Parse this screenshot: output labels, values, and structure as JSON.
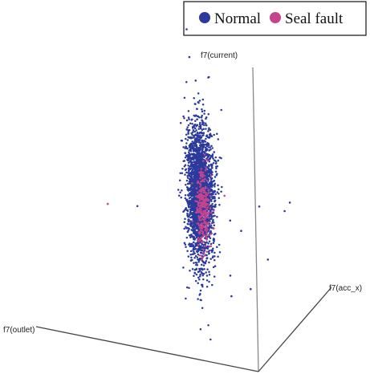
{
  "chart_data": {
    "type": "scatter",
    "projection": "3d",
    "title": "",
    "legend": {
      "placement": "top-right",
      "entries": [
        {
          "name": "Normal",
          "color": "#2b3a9c"
        },
        {
          "name": "Seal fault",
          "color": "#c4458e"
        }
      ]
    },
    "axes": {
      "vertical": "f7(current)",
      "left": "f7(outlet)",
      "right": "f7(acc_x)"
    },
    "series": [
      {
        "name": "Normal",
        "color": "#2b3a9c",
        "cluster": {
          "center": [
            0.35,
            0.3,
            0.45
          ],
          "spread": [
            0.06,
            0.05,
            0.22
          ],
          "count": 2600
        },
        "outliers": [
          [
            0.05,
            0.2,
            0.48
          ],
          [
            0.1,
            0.1,
            0.42
          ],
          [
            0.2,
            0.05,
            0.55
          ],
          [
            0.02,
            0.45,
            0.4
          ],
          [
            0.28,
            0.06,
            0.6
          ],
          [
            0.22,
            0.3,
            0.2
          ],
          [
            0.3,
            0.55,
            0.3
          ],
          [
            0.15,
            0.6,
            0.18
          ],
          [
            0.38,
            0.25,
            1.0
          ],
          [
            0.36,
            0.22,
            0.92
          ],
          [
            0.34,
            0.24,
            0.84
          ],
          [
            0.33,
            0.26,
            0.77
          ],
          [
            0.35,
            0.28,
            0.7
          ],
          [
            0.3,
            0.35,
            0.58
          ],
          [
            0.25,
            0.4,
            0.1
          ],
          [
            0.18,
            0.45,
            0.12
          ],
          [
            0.6,
            0.2,
            0.4
          ],
          [
            0.45,
            0.5,
            0.22
          ],
          [
            0.4,
            0.62,
            0.28
          ],
          [
            0.08,
            0.7,
            0.35
          ]
        ]
      },
      {
        "name": "Seal fault",
        "color": "#c4458e",
        "cluster": {
          "center": [
            0.34,
            0.31,
            0.4
          ],
          "spread": [
            0.03,
            0.025,
            0.12
          ],
          "count": 280
        },
        "outliers": [
          [
            0.7,
            0.1,
            0.42
          ],
          [
            0.26,
            0.36,
            0.44
          ]
        ]
      }
    ]
  }
}
